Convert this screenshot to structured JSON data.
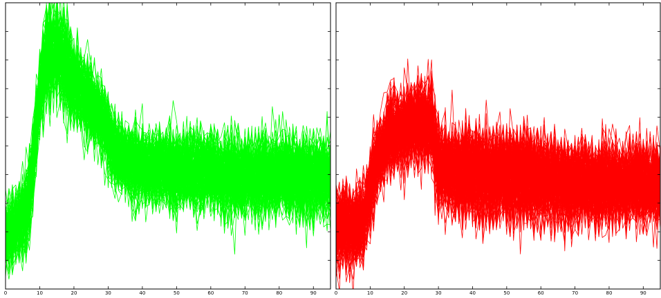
{
  "chart_data": [
    {
      "type": "line",
      "title": "",
      "xlabel": "",
      "ylabel": "",
      "xlim": [
        0,
        95
      ],
      "ylim": [
        0,
        10
      ],
      "grid": false,
      "x_ticks": [
        0,
        10,
        20,
        30,
        40,
        50,
        60,
        70,
        80,
        90
      ],
      "x_tick_labels": [
        "0",
        "10",
        "20",
        "30",
        "40",
        "50",
        "60",
        "70",
        "80",
        "90"
      ],
      "y_ticks": [
        1,
        2,
        3,
        4,
        5,
        6,
        7,
        8,
        9,
        10
      ],
      "y_tick_labels": [
        "",
        "",
        "",
        "",
        "",
        "",
        "",
        "",
        "",
        ""
      ],
      "color": "#00ff00",
      "series_count": 150,
      "mean_profile": {
        "x": [
          0,
          3,
          5,
          7,
          8,
          10,
          12,
          14,
          16,
          18,
          20,
          22,
          25,
          28,
          30,
          33,
          36,
          40,
          45,
          50,
          55,
          60,
          70,
          80,
          90,
          95
        ],
        "y": [
          1.9,
          2.2,
          2.5,
          3.2,
          4.4,
          6.8,
          8.3,
          8.4,
          8.1,
          7.6,
          7.2,
          6.9,
          6.5,
          6.0,
          5.4,
          4.7,
          4.4,
          4.3,
          4.3,
          4.2,
          4.1,
          4.1,
          4.0,
          4.0,
          3.9,
          3.9
        ]
      },
      "spread_profile": {
        "x": [
          0,
          10,
          14,
          20,
          30,
          40,
          60,
          95
        ],
        "y": [
          0.5,
          0.7,
          0.8,
          0.65,
          0.55,
          0.55,
          0.6,
          0.6
        ]
      }
    },
    {
      "type": "line",
      "title": "",
      "xlabel": "",
      "ylabel": "",
      "xlim": [
        0,
        95
      ],
      "ylim": [
        0,
        10
      ],
      "grid": false,
      "x_ticks": [
        0,
        10,
        20,
        30,
        40,
        50,
        60,
        70,
        80,
        90
      ],
      "x_tick_labels": [
        "0",
        "10",
        "20",
        "30",
        "40",
        "50",
        "60",
        "70",
        "80",
        "90"
      ],
      "y_ticks": [
        1,
        2,
        3,
        4,
        5,
        6,
        7,
        8,
        9,
        10
      ],
      "y_tick_labels": [
        "",
        "",
        "",
        "",
        "",
        "",
        "",
        "",
        "",
        ""
      ],
      "color": "#ff0000",
      "series_count": 150,
      "mean_profile": {
        "x": [
          0,
          3,
          6,
          8,
          9,
          12,
          15,
          18,
          20,
          25,
          28,
          29,
          30,
          32,
          35,
          40,
          50,
          60,
          70,
          80,
          90,
          95
        ],
        "y": [
          2.2,
          2.2,
          2.2,
          2.3,
          3.0,
          4.5,
          5.3,
          5.6,
          5.7,
          5.9,
          5.8,
          5.0,
          4.4,
          4.2,
          4.2,
          4.1,
          4.0,
          3.9,
          3.7,
          3.7,
          3.7,
          3.7
        ]
      },
      "spread_profile": {
        "x": [
          0,
          10,
          20,
          30,
          40,
          60,
          95
        ],
        "y": [
          0.6,
          0.6,
          0.6,
          0.7,
          0.75,
          0.7,
          0.6
        ]
      }
    }
  ]
}
